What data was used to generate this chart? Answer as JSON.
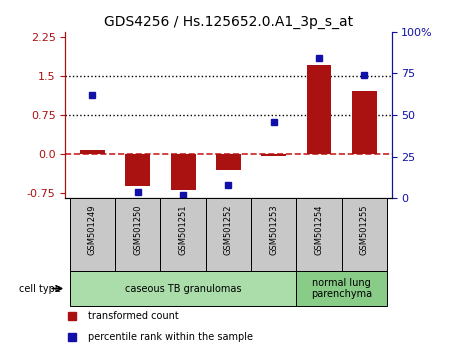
{
  "title": "GDS4256 / Hs.125652.0.A1_3p_s_at",
  "samples": [
    "GSM501249",
    "GSM501250",
    "GSM501251",
    "GSM501252",
    "GSM501253",
    "GSM501254",
    "GSM501255"
  ],
  "transformed_count": [
    0.08,
    -0.62,
    -0.7,
    -0.3,
    -0.04,
    1.72,
    1.22
  ],
  "percentile_rank_pct": [
    62,
    4,
    2,
    8,
    46,
    84,
    74
  ],
  "ylim_left": [
    -0.85,
    2.35
  ],
  "ylim_right": [
    0,
    100
  ],
  "yticks_left": [
    -0.75,
    0.0,
    0.75,
    1.5,
    2.25
  ],
  "yticks_right": [
    0,
    25,
    50,
    75,
    100
  ],
  "hlines": [
    0.75,
    1.5
  ],
  "bar_color": "#aa1111",
  "dot_color": "#1111aa",
  "dashed_line_color": "#cc2222",
  "cell_type_groups": [
    {
      "label": "caseous TB granulomas",
      "start": 0,
      "end": 5,
      "color": "#aaddaa"
    },
    {
      "label": "normal lung\nparenchyma",
      "start": 5,
      "end": 7,
      "color": "#88cc88"
    }
  ],
  "legend_bar_label": "transformed count",
  "legend_dot_label": "percentile rank within the sample",
  "cell_type_label": "cell type",
  "background_color": "#ffffff",
  "gray_color": "#c8c8c8"
}
